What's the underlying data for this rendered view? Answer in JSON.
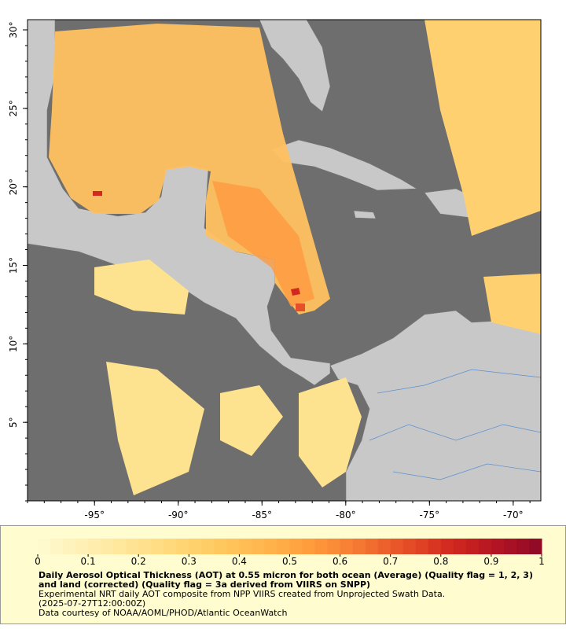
{
  "map": {
    "xlim": [
      -99,
      -68.35
    ],
    "ylim": [
      0,
      30.65
    ],
    "xticks": [
      {
        "value": -95,
        "label": "-95°"
      },
      {
        "value": -90,
        "label": "-90°"
      },
      {
        "value": -85,
        "label": "-85°"
      },
      {
        "value": -80,
        "label": "-80°"
      },
      {
        "value": -75,
        "label": "-75°"
      },
      {
        "value": -70,
        "label": "-70°"
      }
    ],
    "yticks": [
      {
        "value": 5,
        "label": "5°"
      },
      {
        "value": 10,
        "label": "10°"
      },
      {
        "value": 15,
        "label": "15°"
      },
      {
        "value": 20,
        "label": "20°"
      },
      {
        "value": 25,
        "label": "25°"
      },
      {
        "value": 30,
        "label": "30°"
      }
    ]
  },
  "colorbar": {
    "lim": [
      0,
      1
    ],
    "ticks": [
      0,
      0.1,
      0.2,
      0.3,
      0.4,
      0.5,
      0.6,
      0.7,
      0.8,
      0.9,
      1
    ],
    "colors": [
      "#fffad2",
      "#fff0b4",
      "#ffe496",
      "#ffd878",
      "#ffc85f",
      "#ffb44b",
      "#ff9b3c",
      "#f57832",
      "#e65028",
      "#d2281e",
      "#b41423",
      "#8c0a28"
    ]
  },
  "caption": {
    "title": "Daily Aerosol Optical Thickness (AOT) at 0.55 micron for both ocean (Average) (Quality flag = 1, 2, 3) and land (corrected) (Quality flag = 3a derived from VIIRS on SNPP)",
    "lines": [
      "Experimental NRT daily AOT composite from NPP VIIRS created from Unprojected Swath Data.",
      "(2025-07-27T12:00:00Z)",
      "Data courtesy of NOAA/AOML/PHOD/Atlantic OceanWatch"
    ]
  }
}
